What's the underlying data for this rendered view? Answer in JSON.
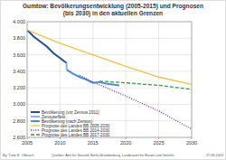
{
  "chart_data": {
    "type": "line",
    "title": "Gumtow:  Bevölkerungsentwicklung (2005-2015) und Prognosen",
    "subtitle": "(bis 2030) in den aktuellen Grenzen",
    "annotations": [
      "By: Tutte E. Olbrisch",
      "Quellen: Amt für Statistik Berlin-Brandenburg, Landesamt für Bauen und Verkehr",
      "17.08.2019"
    ],
    "xlim": [
      2005,
      2030
    ],
    "xticks": [
      2005,
      2010,
      2015,
      2020,
      2025,
      2030
    ],
    "ylim": [
      2600,
      4000
    ],
    "yticks": [
      {
        "value": 2600,
        "label": "2.600"
      },
      {
        "value": 2800,
        "label": "2.800"
      },
      {
        "value": 3000,
        "label": "3.000"
      },
      {
        "value": 3200,
        "label": "3.200"
      },
      {
        "value": 3400,
        "label": "3.400"
      },
      {
        "value": 3600,
        "label": "3.600"
      },
      {
        "value": 3800,
        "label": "3.800"
      },
      {
        "value": 4000,
        "label": "4.000"
      }
    ],
    "grid": true,
    "legend": "lower left",
    "series": [
      {
        "name": "Bevölkerung (vor Zensus 2011)",
        "color": "#1f4e9c",
        "line_style": "solid",
        "x": [
          2005,
          2006,
          2007,
          2008,
          2009,
          2010,
          2011
        ],
        "values": [
          3900,
          3820,
          3760,
          3700,
          3620,
          3560,
          3500
        ]
      },
      {
        "name": "Zensuseffekt",
        "color": "#8fb4e3",
        "line_style": "solid",
        "x": [
          2011,
          2011
        ],
        "values": [
          3500,
          3420
        ]
      },
      {
        "name": "Bevölkerung (nach Zensus)",
        "color": "#4a90d9",
        "line_style": "solid",
        "x": [
          2011,
          2012,
          2013,
          2014,
          2015,
          2016,
          2017,
          2018,
          2019
        ],
        "values": [
          3420,
          3370,
          3330,
          3300,
          3260,
          3270,
          3250,
          3240,
          3230
        ]
      },
      {
        "name": "Prognose des Landes BB 2005-2030",
        "color": "#f0c040",
        "line_style": "solid",
        "x": [
          2005,
          2010,
          2015,
          2020,
          2025,
          2030
        ],
        "values": [
          3900,
          3740,
          3600,
          3460,
          3330,
          3240
        ]
      },
      {
        "name": "Prognose des Landes BB 2014-2030",
        "color": "#6a2fa0",
        "line_style": "dotted",
        "x": [
          2013,
          2015,
          2020,
          2025,
          2030
        ],
        "values": [
          3350,
          3270,
          3100,
          2920,
          2700
        ]
      },
      {
        "name": "Prognose des Landes BB 2017-2030",
        "color": "#3a9a3a",
        "line_style": "dashed",
        "x": [
          2016,
          2020,
          2025,
          2030
        ],
        "values": [
          3280,
          3260,
          3230,
          3180
        ]
      }
    ]
  }
}
